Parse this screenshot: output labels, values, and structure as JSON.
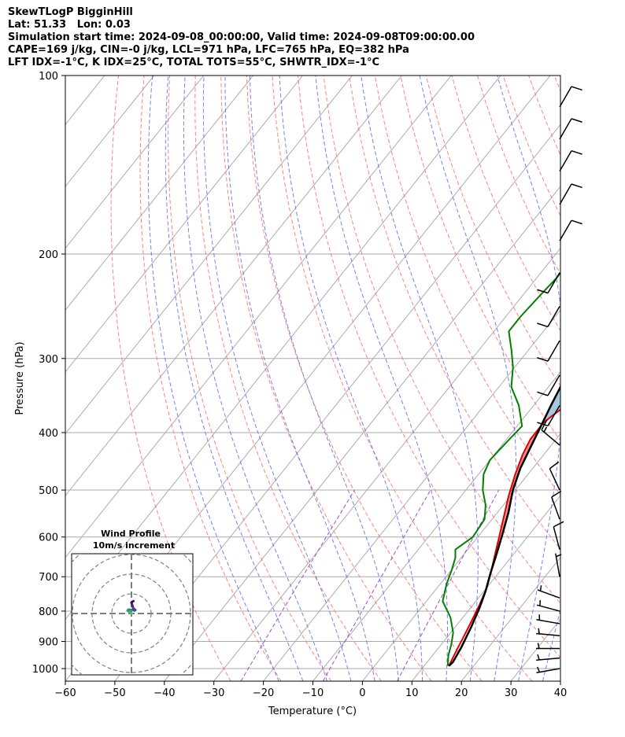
{
  "header": {
    "line1": "SkewTLogP BigginHill",
    "line2": "Lat: 51.33   Lon: 0.03",
    "line3": "Simulation start time: 2024-09-08_00:00:00, Valid time: 2024-09-08T09:00:00.00",
    "line4": "CAPE=169 j/kg, CIN=-0 j/kg, LCL=971 hPa, LFC=765 hPa, EQ=382 hPa",
    "line5": "LFT IDX=-1°C, K IDX=25°C, TOTAL TOTS=55°C, SHWTR_IDX=-1°C"
  },
  "chart_data": {
    "type": "line",
    "subtype": "skew-T log-P diagram",
    "xlabel": "Temperature (°C)",
    "ylabel": "Pressure (hPa)",
    "xlim": [
      -60,
      40
    ],
    "ylim": [
      1050,
      100
    ],
    "y_scale": "log",
    "grid": true,
    "x_ticks": [
      -60,
      -50,
      -40,
      -30,
      -20,
      -10,
      0,
      10,
      20,
      30,
      40
    ],
    "x_tick_labels": [
      "−60",
      "−50",
      "−40",
      "−30",
      "−20",
      "−10",
      "0",
      "10",
      "20",
      "30",
      "40"
    ],
    "y_ticks": [
      100,
      200,
      300,
      400,
      500,
      600,
      700,
      800,
      900,
      1000
    ],
    "y_tick_labels": [
      "100",
      "200",
      "300",
      "400",
      "500",
      "600",
      "700",
      "800",
      "900",
      "1000"
    ],
    "colors": {
      "temperature": "#e00000",
      "dewpoint": "#008000",
      "parcel": "#000000",
      "cape_fill": "#7eb0d5",
      "cin_fill": "#f08080",
      "dry_adiabat": "#ff6b6b",
      "moist_adiabat": "#5a6cf0",
      "mixing_ratio": "#9b4fc8",
      "isotherm": "#aaaaaa"
    },
    "series": [
      {
        "kind": "temperature",
        "points": [
          [
            15.0,
            990
          ],
          [
            14.5,
            960
          ],
          [
            14.0,
            930
          ],
          [
            13.2,
            880
          ],
          [
            12.3,
            830
          ],
          [
            11.3,
            780
          ],
          [
            10.0,
            730
          ],
          [
            8.0,
            680
          ],
          [
            6.2,
            640
          ],
          [
            4.3,
            600
          ],
          [
            2.0,
            555
          ],
          [
            -0.5,
            510
          ],
          [
            -2.6,
            470
          ],
          [
            -4.3,
            435
          ],
          [
            -5.2,
            410
          ],
          [
            -5.2,
            385
          ],
          [
            -4.6,
            375
          ],
          [
            -2.6,
            350
          ],
          [
            -0.8,
            330
          ],
          [
            0.5,
            310
          ],
          [
            2.1,
            290
          ],
          [
            3.8,
            270
          ],
          [
            5.0,
            250
          ],
          [
            6.1,
            230
          ],
          [
            6.9,
            210
          ],
          [
            8.1,
            200
          ],
          [
            9.0,
            190
          ],
          [
            9.6,
            180
          ],
          [
            10.0,
            170
          ],
          [
            10.8,
            160
          ],
          [
            11.7,
            150
          ],
          [
            12.8,
            140
          ],
          [
            13.8,
            130
          ],
          [
            15.1,
            120
          ],
          [
            16.3,
            110
          ],
          [
            17.6,
            100
          ]
        ]
      },
      {
        "kind": "dewpoint",
        "points": [
          [
            14.8,
            990
          ],
          [
            13.2,
            950
          ],
          [
            12.0,
            910
          ],
          [
            10.5,
            870
          ],
          [
            7.5,
            820
          ],
          [
            3.3,
            770
          ],
          [
            1.3,
            720
          ],
          [
            0.0,
            680
          ],
          [
            -1.2,
            650
          ],
          [
            -2.5,
            630
          ],
          [
            -1.0,
            600
          ],
          [
            -1.5,
            560
          ],
          [
            -3.6,
            530
          ],
          [
            -6.6,
            500
          ],
          [
            -9.0,
            470
          ],
          [
            -10.0,
            445
          ],
          [
            -9.5,
            415
          ],
          [
            -9.0,
            390
          ],
          [
            -13.0,
            360
          ],
          [
            -17.5,
            335
          ],
          [
            -20.4,
            310
          ],
          [
            -23.5,
            290
          ],
          [
            -27.0,
            270
          ],
          [
            -27.0,
            255
          ],
          [
            -26.5,
            235
          ],
          [
            -26.0,
            220
          ],
          [
            -26.0,
            200
          ],
          [
            -26.0,
            180
          ],
          [
            -25.5,
            165
          ],
          [
            -24.8,
            150
          ],
          [
            -23.0,
            140
          ],
          [
            -19.9,
            130
          ],
          [
            -16.0,
            120
          ],
          [
            -13.0,
            110
          ],
          [
            -10.4,
            100
          ]
        ]
      },
      {
        "kind": "parcel",
        "points": [
          [
            15.0,
            990
          ],
          [
            15.2,
            975
          ],
          [
            14.5,
            920
          ],
          [
            13.2,
            850
          ],
          [
            11.8,
            790
          ],
          [
            10.3,
            740
          ],
          [
            8.4,
            690
          ],
          [
            6.5,
            640
          ],
          [
            4.6,
            595
          ],
          [
            2.2,
            545
          ],
          [
            -0.5,
            500
          ],
          [
            -2.5,
            460
          ],
          [
            -4.0,
            420
          ],
          [
            -5.2,
            390
          ],
          [
            -6.5,
            360
          ],
          [
            -7.8,
            330
          ],
          [
            -9.0,
            300
          ],
          [
            -10.6,
            270
          ],
          [
            -12.2,
            240
          ],
          [
            -13.8,
            210
          ],
          [
            -14.8,
            190
          ],
          [
            -15.5,
            170
          ],
          [
            -15.8,
            150
          ],
          [
            -15.6,
            130
          ],
          [
            -15.0,
            115
          ],
          [
            -14.4,
            100
          ]
        ]
      }
    ],
    "wind_barbs": [
      {
        "pressure": 1000,
        "direction_deg": 260,
        "speed_kt": 5
      },
      {
        "pressure": 960,
        "direction_deg": 265,
        "speed_kt": 5
      },
      {
        "pressure": 925,
        "direction_deg": 270,
        "speed_kt": 5
      },
      {
        "pressure": 880,
        "direction_deg": 275,
        "speed_kt": 5
      },
      {
        "pressure": 840,
        "direction_deg": 280,
        "speed_kt": 5
      },
      {
        "pressure": 800,
        "direction_deg": 285,
        "speed_kt": 5
      },
      {
        "pressure": 760,
        "direction_deg": 290,
        "speed_kt": 5
      },
      {
        "pressure": 700,
        "direction_deg": 350,
        "speed_kt": 5
      },
      {
        "pressure": 630,
        "direction_deg": 345,
        "speed_kt": 10
      },
      {
        "pressure": 560,
        "direction_deg": 340,
        "speed_kt": 10
      },
      {
        "pressure": 500,
        "direction_deg": 335,
        "speed_kt": 10
      },
      {
        "pressure": 420,
        "direction_deg": 310,
        "speed_kt": 15
      },
      {
        "pressure": 360,
        "direction_deg": 210,
        "speed_kt": 10
      },
      {
        "pressure": 320,
        "direction_deg": 210,
        "speed_kt": 10
      },
      {
        "pressure": 280,
        "direction_deg": 210,
        "speed_kt": 10
      },
      {
        "pressure": 245,
        "direction_deg": 210,
        "speed_kt": 10
      },
      {
        "pressure": 215,
        "direction_deg": 210,
        "speed_kt": 10
      },
      {
        "pressure": 190,
        "direction_deg": 30,
        "speed_kt": 10
      },
      {
        "pressure": 165,
        "direction_deg": 30,
        "speed_kt": 10
      },
      {
        "pressure": 145,
        "direction_deg": 30,
        "speed_kt": 10
      },
      {
        "pressure": 128,
        "direction_deg": 30,
        "speed_kt": 10
      },
      {
        "pressure": 113,
        "direction_deg": 30,
        "speed_kt": 10
      }
    ],
    "hodograph": {
      "title": "Wind Profile",
      "subtitle": "10m/s increment",
      "ring_step_ms": 10,
      "points": [
        [
          0.0,
          0.0
        ],
        [
          -1.0,
          0.8
        ],
        [
          -2.0,
          1.5
        ],
        [
          -1.5,
          2.0
        ],
        [
          0.5,
          1.8
        ],
        [
          1.5,
          1.5
        ],
        [
          2.0,
          1.8
        ],
        [
          1.0,
          2.5
        ],
        [
          0.5,
          4.0
        ],
        [
          0.0,
          5.5
        ],
        [
          0.5,
          6.0
        ],
        [
          1.0,
          6.3
        ]
      ]
    }
  }
}
